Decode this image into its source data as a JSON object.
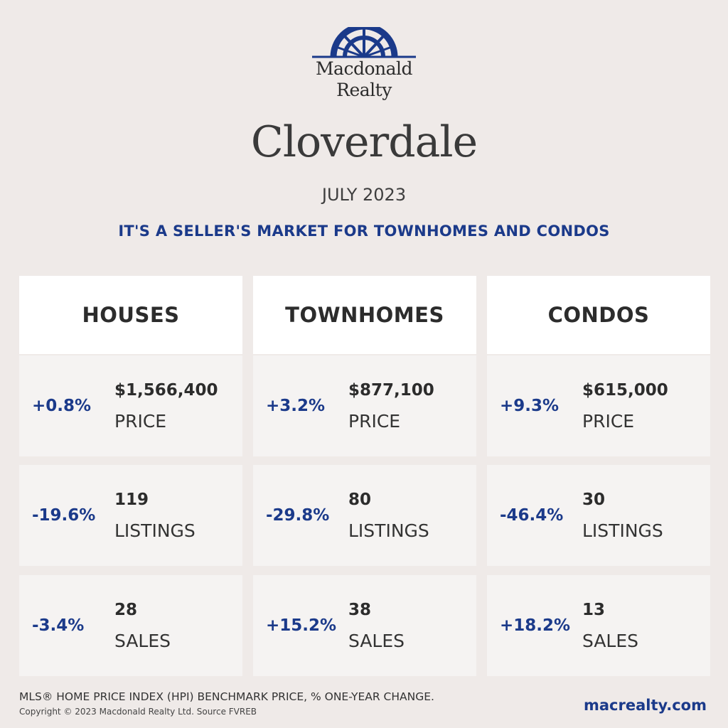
{
  "brand": {
    "line1": "Macdonald",
    "line2": "Realty",
    "logo_icon": "sunrise-arch-logo",
    "color": "#1b3a8a"
  },
  "title": "Cloverdale",
  "date": "JULY 2023",
  "headline": "IT'S A SELLER'S MARKET FOR TOWNHOMES AND CONDOS",
  "columns": [
    {
      "heading": "HOUSES",
      "stats": [
        {
          "change": "+0.8%",
          "value": "$1,566,400",
          "label": "PRICE"
        },
        {
          "change": "-19.6%",
          "value": "119",
          "label": "LISTINGS"
        },
        {
          "change": "-3.4%",
          "value": "28",
          "label": "SALES"
        }
      ]
    },
    {
      "heading": "TOWNHOMES",
      "stats": [
        {
          "change": "+3.2%",
          "value": "$877,100",
          "label": "PRICE"
        },
        {
          "change": "-29.8%",
          "value": "80",
          "label": "LISTINGS"
        },
        {
          "change": "+15.2%",
          "value": "38",
          "label": "SALES"
        }
      ]
    },
    {
      "heading": "CONDOS",
      "stats": [
        {
          "change": "+9.3%",
          "value": "$615,000",
          "label": "PRICE"
        },
        {
          "change": "-46.4%",
          "value": "30",
          "label": "LISTINGS"
        },
        {
          "change": "+18.2%",
          "value": "13",
          "label": "SALES"
        }
      ]
    }
  ],
  "footer": {
    "note": "MLS® HOME PRICE INDEX (HPI) BENCHMARK PRICE, % ONE-YEAR CHANGE.",
    "copyright": "Copyright © 2023 Macdonald Realty Ltd. Source FVREB",
    "website": "macrealty.com"
  }
}
